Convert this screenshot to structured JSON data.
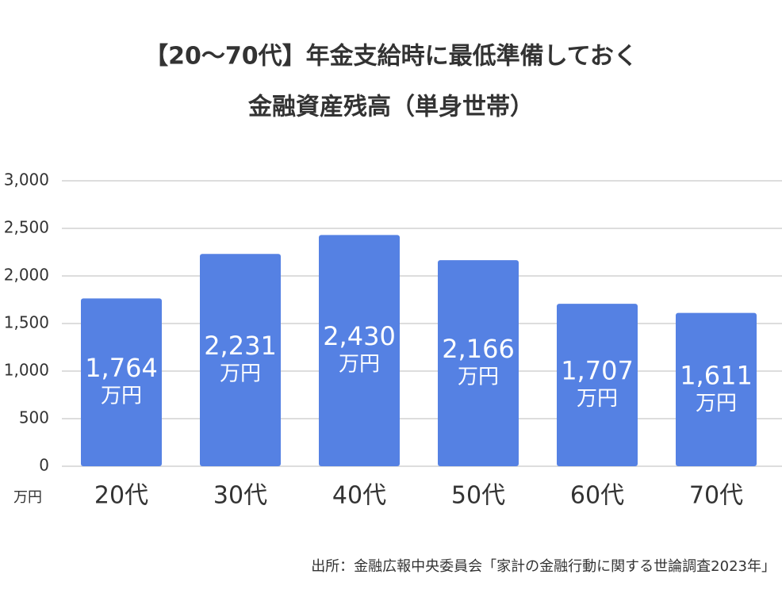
{
  "chart_data": {
    "type": "bar",
    "title": [
      "【20〜70代】年金支給時に最低準備しておく",
      "金融資産残高（単身世帯）"
    ],
    "categories": [
      "20代",
      "30代",
      "40代",
      "50代",
      "60代",
      "70代"
    ],
    "values": [
      1764,
      2231,
      2430,
      2166,
      1707,
      1611
    ],
    "value_labels": [
      "1,764",
      "2,231",
      "2,430",
      "2,166",
      "1,707",
      "1,611"
    ],
    "value_unit": "万円",
    "y_unit": "万円",
    "color": "#5581e3",
    "ylim": [
      0,
      3000
    ],
    "yticks": [
      0,
      500,
      {
        "value": 1000,
        "label": "1,000"
      },
      {
        "value": 1500,
        "label": "1,500"
      },
      {
        "value": 2000,
        "label": "2,000"
      },
      {
        "value": 2500,
        "label": "2,500"
      },
      {
        "value": 3000,
        "label": "3,000"
      }
    ],
    "grid": true,
    "source": "出所：金融広報中央委員会「家計の金融行動に関する世論調査2023年」"
  }
}
